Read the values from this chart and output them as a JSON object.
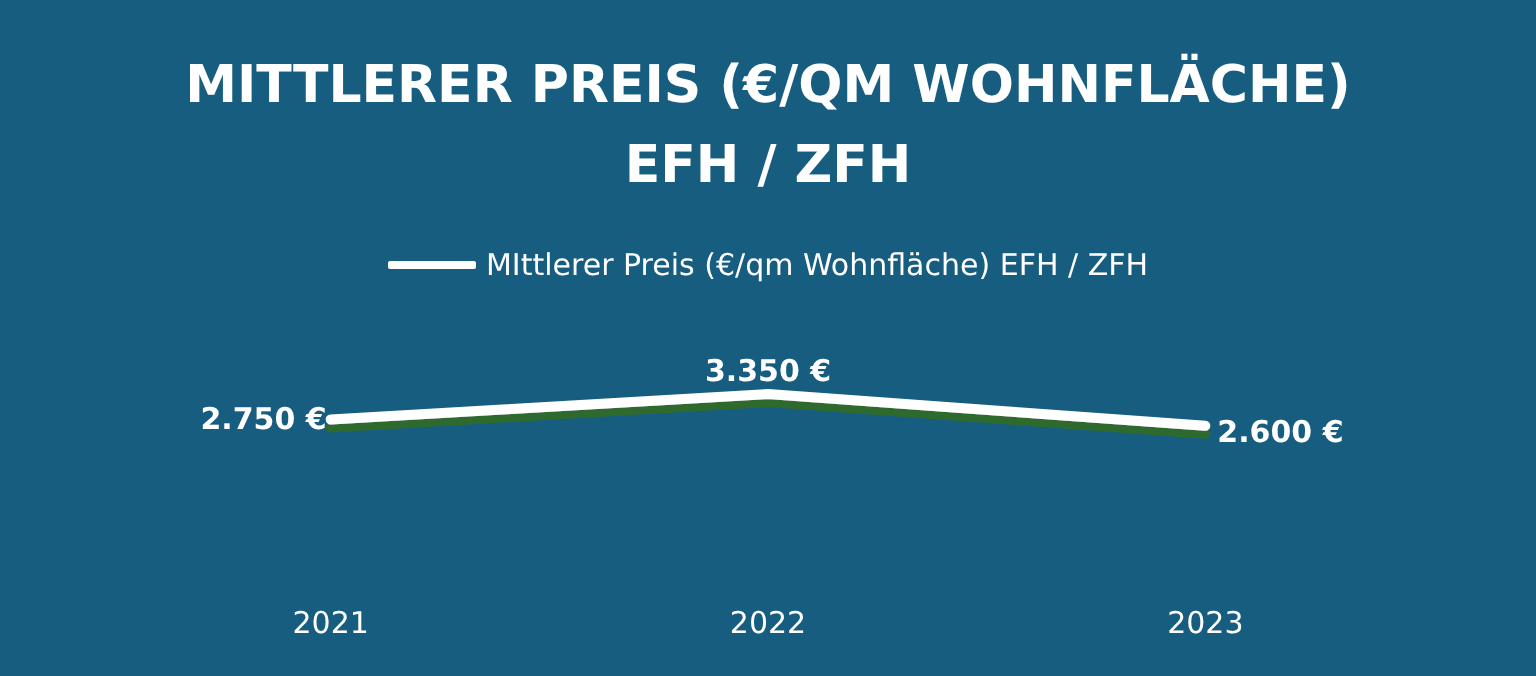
{
  "chart_data": {
    "type": "line",
    "title": "MITTLERER PREIS (€/QM WOHNFLÄCHE)\nEFH / ZFH",
    "categories": [
      "2021",
      "2022",
      "2023"
    ],
    "series": [
      {
        "name": "MIttlerer Preis (€/qm Wohnfläche) EFH / ZFH",
        "color": "#ffffff",
        "values": [
          2750,
          3350,
          2600
        ],
        "value_labels": [
          "2.750 €",
          "3.350 €",
          "2.600 €"
        ]
      }
    ],
    "legend": "top",
    "grid": false,
    "marker": "none",
    "line_style": "solid"
  }
}
